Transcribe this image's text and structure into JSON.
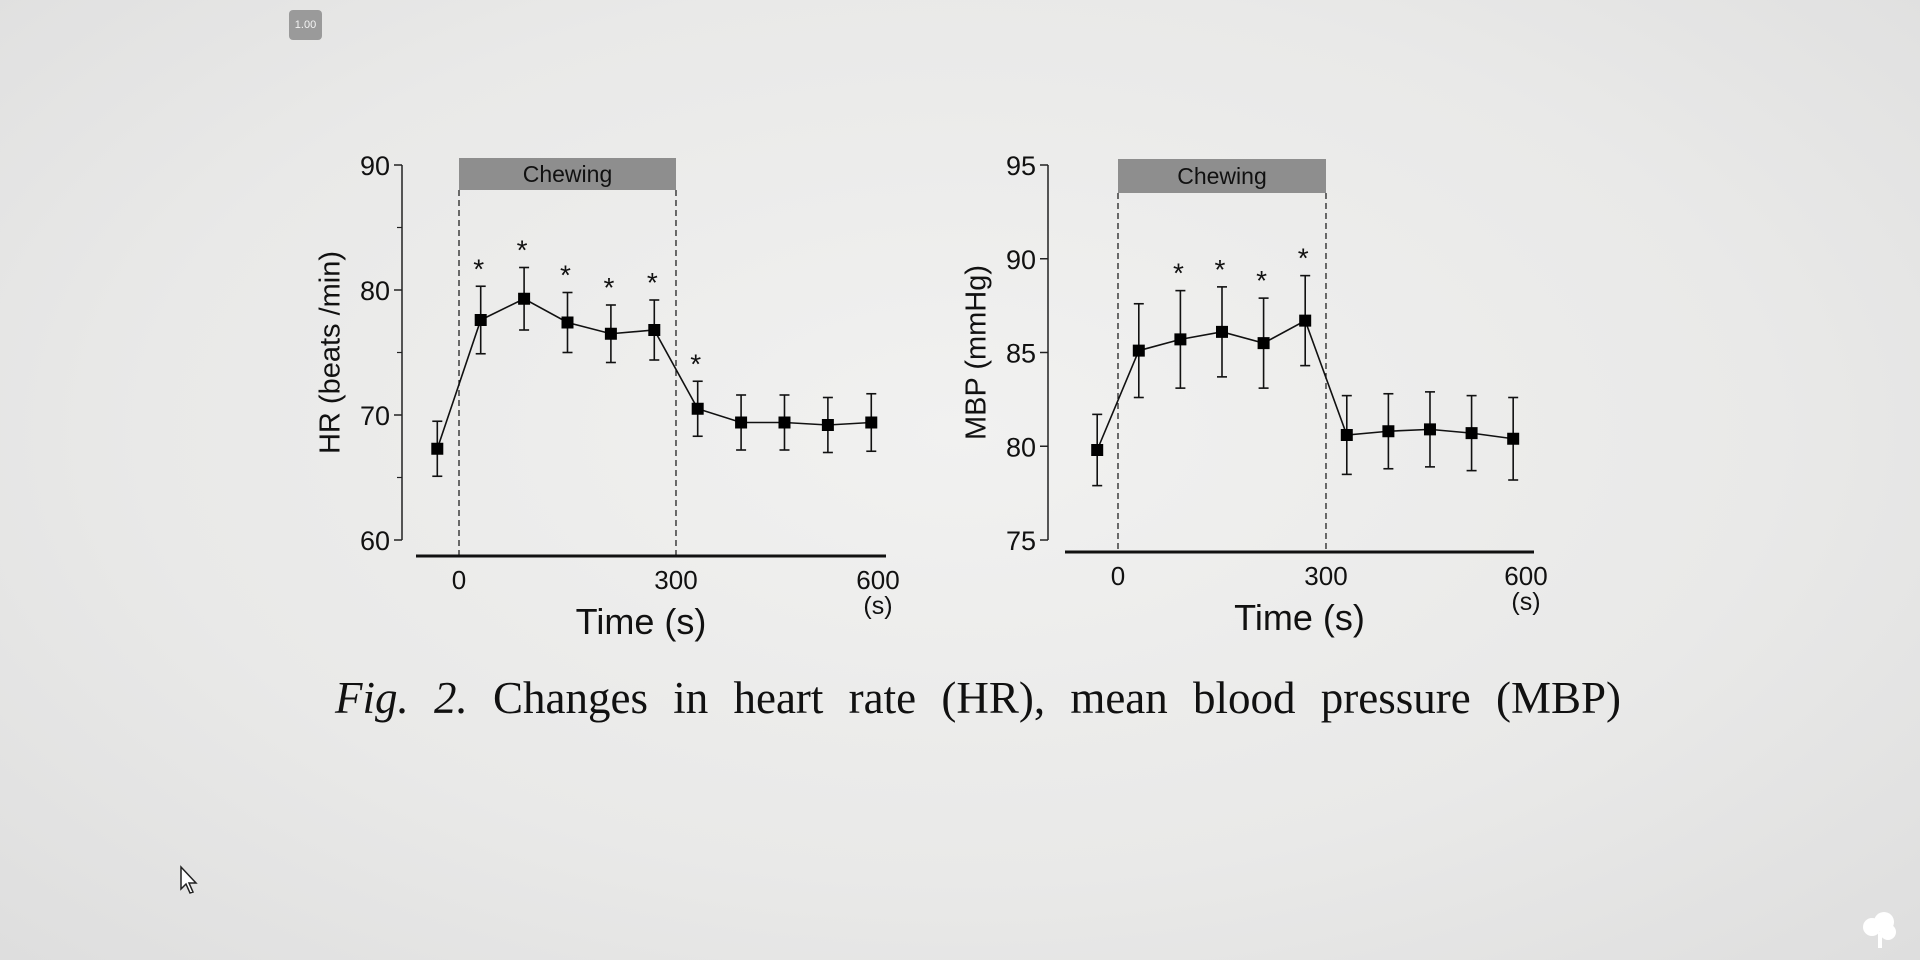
{
  "badge": "1.00",
  "caption": {
    "fig_label": "Fig. 2.",
    "text": "Changes in heart rate (HR), mean blood pressure (MBP)"
  },
  "chart_data": [
    {
      "type": "line",
      "title": "",
      "band_label": "Chewing",
      "band": [
        0,
        300
      ],
      "xlabel": "Time (s)",
      "x_unit": "(s)",
      "ylabel": "HR (beats /min)",
      "ylim": [
        60,
        90
      ],
      "yticks": [
        "60",
        "70",
        "80",
        "90"
      ],
      "yminor": [
        65,
        75,
        85
      ],
      "xticks": [
        "0",
        "300",
        "600"
      ],
      "x": [
        -30,
        30,
        90,
        150,
        210,
        270,
        330,
        390,
        450,
        510,
        570
      ],
      "values": [
        67.3,
        77.6,
        79.3,
        77.4,
        76.5,
        76.8,
        70.5,
        69.4,
        69.4,
        69.2,
        69.4
      ],
      "errors": [
        2.2,
        2.7,
        2.5,
        2.4,
        2.3,
        2.4,
        2.2,
        2.2,
        2.2,
        2.2,
        2.3
      ],
      "significant": [
        false,
        true,
        true,
        true,
        true,
        true,
        true,
        false,
        false,
        false,
        false
      ],
      "marker": "*"
    },
    {
      "type": "line",
      "title": "",
      "band_label": "Chewing",
      "band": [
        0,
        300
      ],
      "xlabel": "Time (s)",
      "x_unit": "(s)",
      "ylabel": "MBP (mmHg)",
      "ylim": [
        75,
        95
      ],
      "yticks": [
        "75",
        "80",
        "85",
        "90",
        "95"
      ],
      "yminor": [],
      "xticks": [
        "0",
        "300",
        "600"
      ],
      "x": [
        -30,
        30,
        90,
        150,
        210,
        270,
        330,
        390,
        450,
        510,
        570
      ],
      "values": [
        79.8,
        85.1,
        85.7,
        86.1,
        85.5,
        86.7,
        80.6,
        80.8,
        80.9,
        80.7,
        80.4
      ],
      "errors": [
        1.9,
        2.5,
        2.6,
        2.4,
        2.4,
        2.4,
        2.1,
        2.0,
        2.0,
        2.0,
        2.2
      ],
      "significant": [
        false,
        false,
        true,
        true,
        true,
        true,
        false,
        false,
        false,
        false,
        false
      ],
      "marker": "*"
    }
  ]
}
